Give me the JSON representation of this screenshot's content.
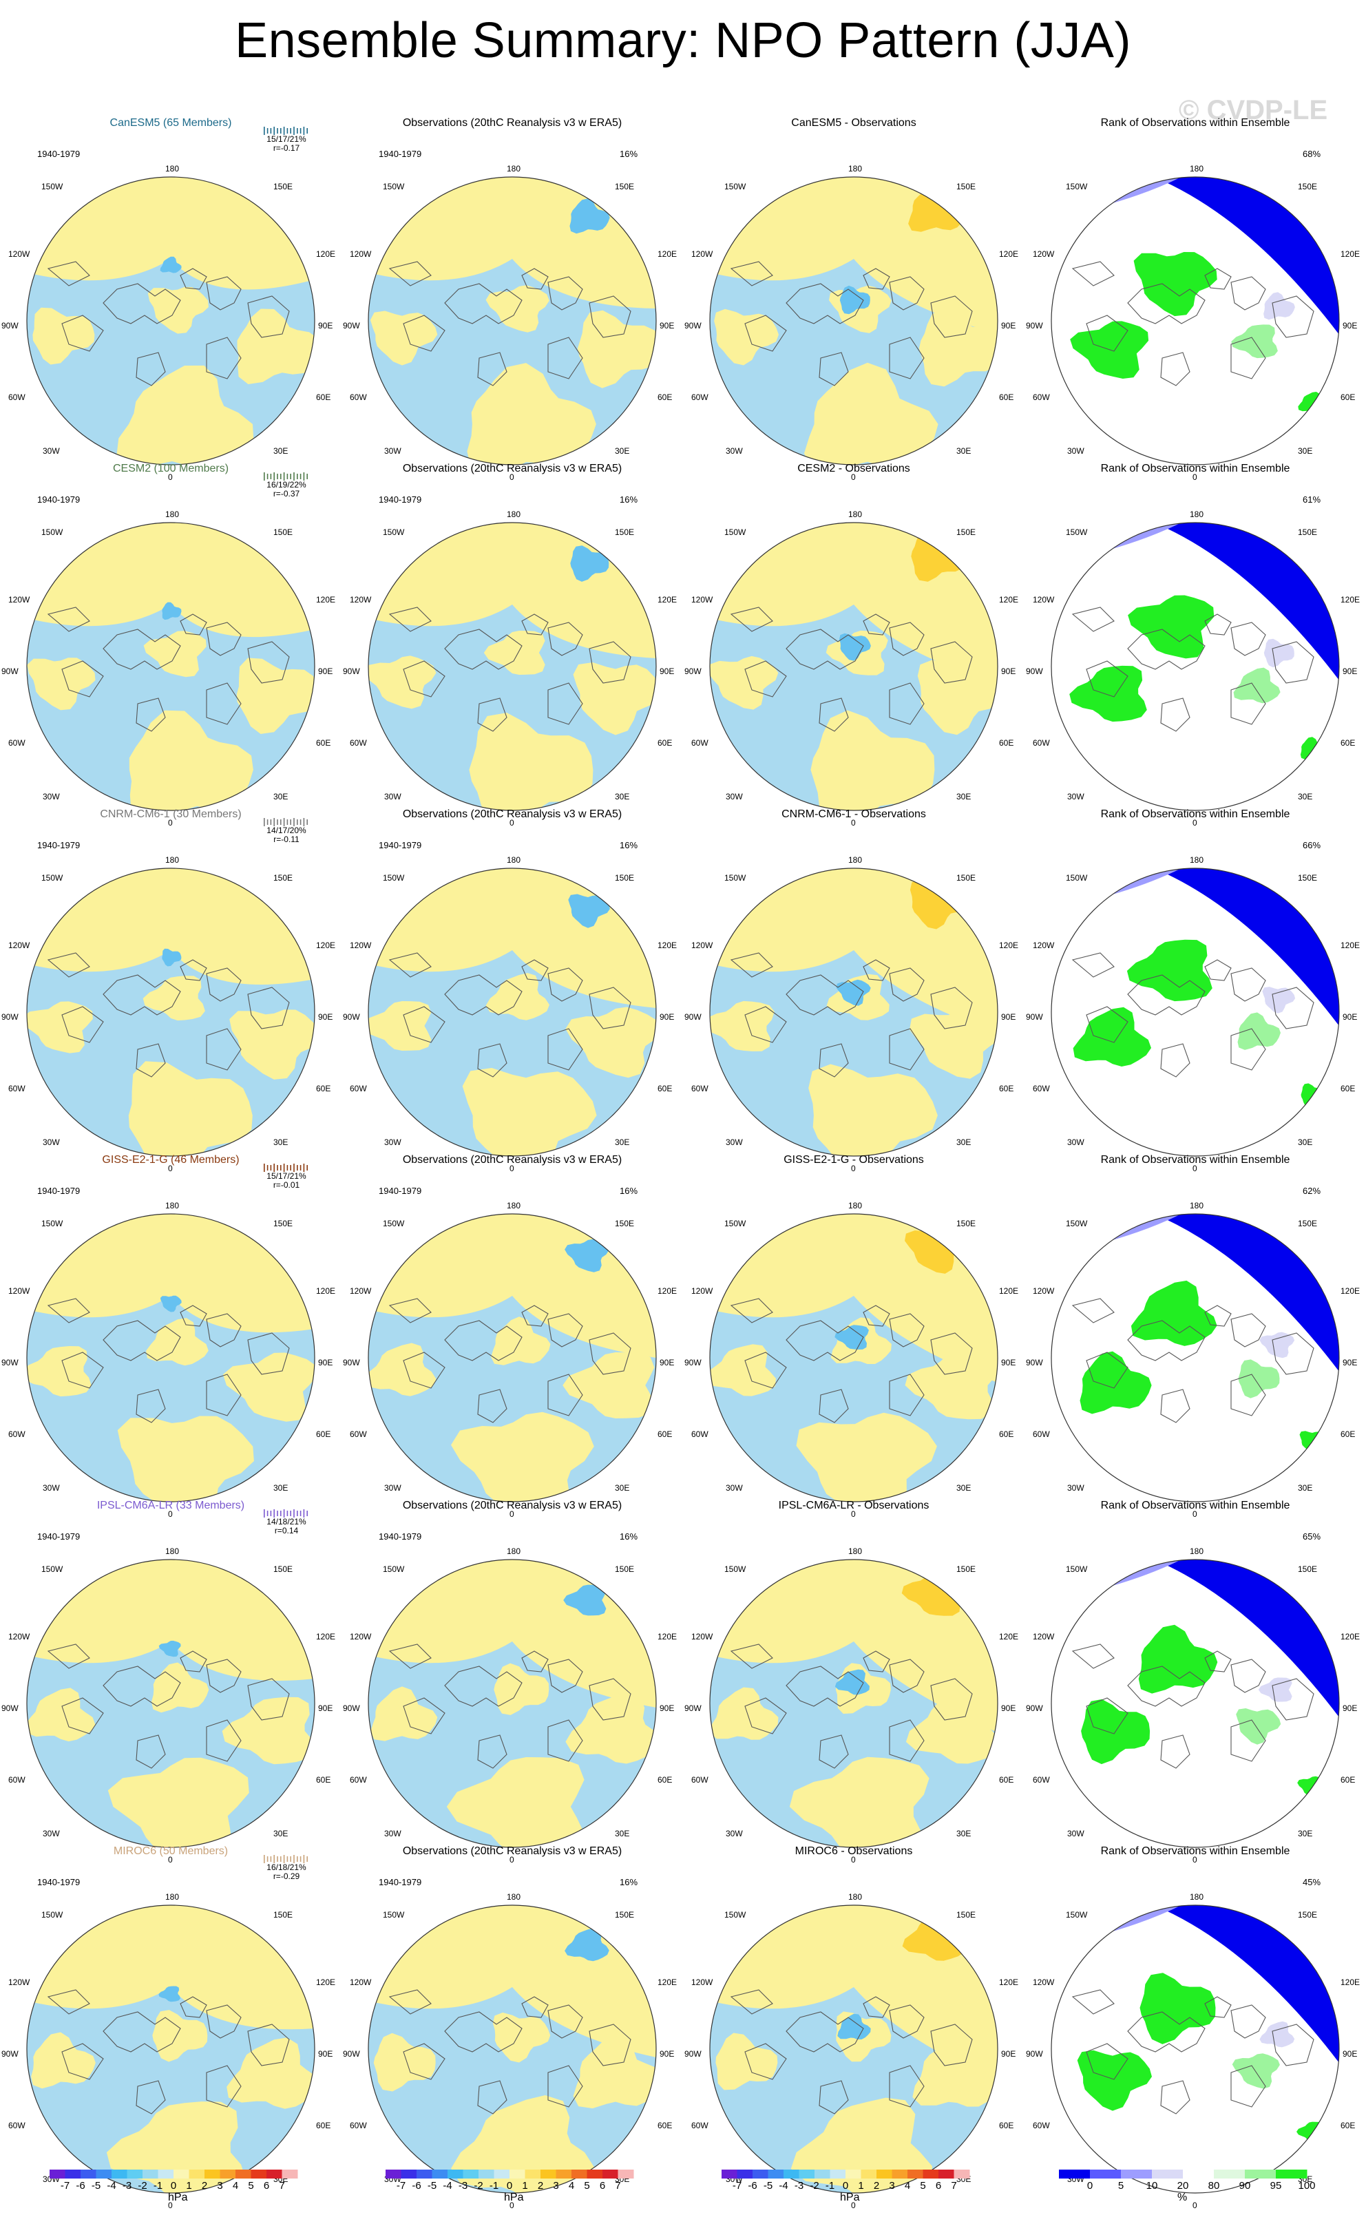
{
  "title": "Ensemble Summary: NPO Pattern (JJA)",
  "watermark": "© CVDP-LE",
  "period": "1940-1979",
  "obs_title": "Observations (20thC Reanalysis v3 w ERA5)",
  "obs_percent": "16%",
  "rank_title": "Rank of Observations within Ensemble",
  "lon_labels": {
    "top": "180",
    "bottom": "0",
    "r1l": "150W",
    "r1r": "150E",
    "r2l": "120W",
    "r2r": "120E",
    "r3l": "90W",
    "r3r": "90E",
    "r4l": "60W",
    "r4r": "60E",
    "r5l": "30W",
    "r5r": "30E"
  },
  "colors": {
    "positive_fill": "#fbf29a",
    "negative_fill": "#aadaf0",
    "strong_positive": "#fcd236",
    "strong_negative": "#66c1f0",
    "rank_low": "#0000ee",
    "rank_high": "#22ee22",
    "coast": "#555555"
  },
  "models": [
    {
      "name": "CanESM5 (65 Members)",
      "color": "#1d6a8a",
      "stats": "15/17/21%",
      "r": "r=-0.17",
      "diff_title": "CanESM5 - Observations",
      "rank_percent": "68%"
    },
    {
      "name": "CESM2 (100 Members)",
      "color": "#4f7a4a",
      "stats": "16/19/22%",
      "r": "r=-0.37",
      "diff_title": "CESM2 - Observations",
      "rank_percent": "61%"
    },
    {
      "name": "CNRM-CM6-1 (30 Members)",
      "color": "#777777",
      "stats": "14/17/20%",
      "r": "r=-0.11",
      "diff_title": "CNRM-CM6-1 - Observations",
      "rank_percent": "66%"
    },
    {
      "name": "GISS-E2-1-G (46 Members)",
      "color": "#8a3a10",
      "stats": "15/17/21%",
      "r": "r=-0.01",
      "diff_title": "GISS-E2-1-G - Observations",
      "rank_percent": "62%"
    },
    {
      "name": "IPSL-CM6A-LR (33 Members)",
      "color": "#7b5acf",
      "stats": "14/18/21%",
      "r": "r=0.14",
      "diff_title": "IPSL-CM6A-LR - Observations",
      "rank_percent": "65%"
    },
    {
      "name": "MIROC6 (50 Members)",
      "color": "#c9a37a",
      "stats": "16/18/21%",
      "r": "r=-0.29",
      "diff_title": "MIROC6 - Observations",
      "rank_percent": "45%"
    }
  ],
  "colorbar_hpa": {
    "labels": [
      "-7",
      "-6",
      "-5",
      "-4",
      "-3",
      "-2",
      "-1",
      "0",
      "1",
      "2",
      "3",
      "4",
      "5",
      "6",
      "7"
    ],
    "colors": [
      "#6a1fd6",
      "#3a2fe8",
      "#3c5cf0",
      "#3d8cf2",
      "#3db8f2",
      "#5fcdf2",
      "#9ad9f0",
      "#c8e8f4",
      "#fbf6b4",
      "#fde36a",
      "#fbc420",
      "#f8a02a",
      "#f06e24",
      "#e53a1c",
      "#d8202a",
      "#f7b6b6"
    ],
    "unit": "hPa"
  },
  "colorbar_rank": {
    "labels": [
      "0",
      "5",
      "10",
      "20",
      "80",
      "90",
      "95",
      "100"
    ],
    "colors": [
      "#0000ee",
      "#5a5aff",
      "#9d9dff",
      "#dadaf6",
      "#ffffff",
      "#dff8df",
      "#9df49d",
      "#22ee22"
    ],
    "unit": "%"
  }
}
